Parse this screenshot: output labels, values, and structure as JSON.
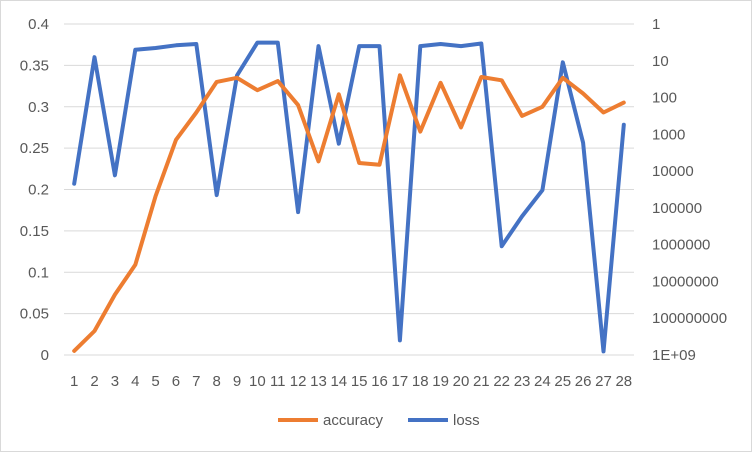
{
  "chart_data": {
    "type": "line",
    "categories": [
      "1",
      "2",
      "3",
      "4",
      "5",
      "6",
      "7",
      "8",
      "9",
      "10",
      "11",
      "12",
      "13",
      "14",
      "15",
      "16",
      "17",
      "18",
      "19",
      "20",
      "21",
      "22",
      "23",
      "24",
      "25",
      "26",
      "27",
      "28"
    ],
    "series": [
      {
        "name": "accuracy",
        "axis": "left",
        "color": "#ED7D31",
        "values": [
          0.005,
          0.029,
          0.073,
          0.109,
          0.192,
          0.26,
          0.293,
          0.33,
          0.335,
          0.32,
          0.331,
          0.302,
          0.234,
          0.315,
          0.232,
          0.23,
          0.338,
          0.27,
          0.329,
          0.275,
          0.336,
          0.332,
          0.289,
          0.3,
          0.335,
          0.316,
          0.293,
          0.305
        ]
      },
      {
        "name": "loss",
        "axis": "right",
        "color": "#4472C4",
        "values": [
          22000.0,
          8,
          13000.0,
          5,
          4.5,
          3.8,
          3.5,
          45000.0,
          25,
          3.2,
          3.2,
          130000.0,
          4,
          1800.0,
          4,
          4,
          400000000.0,
          4,
          3.5,
          4,
          3.4,
          1100000.0,
          170000.0,
          33000.0,
          11,
          1700.0,
          800000000.0,
          550.0
        ]
      }
    ],
    "y_left": {
      "ticks": [
        "0",
        "0.05",
        "0.1",
        "0.15",
        "0.2",
        "0.25",
        "0.3",
        "0.35",
        "0.4"
      ],
      "ylim": [
        0,
        0.4
      ]
    },
    "y_right": {
      "scale": "log",
      "ticks": [
        "1",
        "10",
        "100",
        "1000",
        "10000",
        "100000",
        "1000000",
        "10000000",
        "100000000",
        "1E+09"
      ],
      "ylim": [
        1,
        1000000000
      ],
      "inverted": true
    },
    "grid": true,
    "legend": "bottom"
  }
}
